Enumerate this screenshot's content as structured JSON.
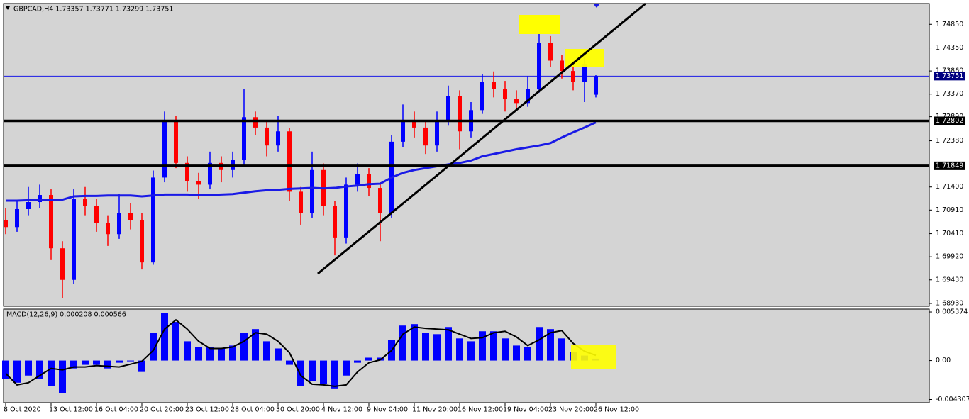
{
  "chart_data": [
    {
      "type": "candlestick",
      "title": "GBPCAD,H4  1.73357 1.73771 1.73299 1.73751",
      "categories": [
        "8 Oct 2020",
        null,
        null,
        null,
        "13 Oct 12:00",
        null,
        null,
        null,
        "16 Oct 04:00",
        null,
        null,
        null,
        "20 Oct 20:00",
        null,
        null,
        null,
        "23 Oct 12:00",
        null,
        null,
        null,
        "28 Oct 04:00",
        null,
        null,
        null,
        "30 Oct 20:00",
        null,
        null,
        null,
        "4 Nov 12:00",
        null,
        null,
        null,
        "9 Nov 04:00",
        null,
        null,
        null,
        "11 Nov 20:00",
        null,
        null,
        null,
        "16 Nov 12:00",
        null,
        null,
        null,
        "19 Nov 04:00",
        null,
        null,
        null,
        "23 Nov 20:00",
        null,
        null,
        null,
        "26 Nov 12:00"
      ],
      "open": [
        1.707,
        1.7055,
        1.7093,
        1.7108,
        1.7123,
        1.701,
        1.6943,
        1.7115,
        1.71,
        1.7063,
        1.704,
        1.7085,
        1.707,
        1.698,
        1.716,
        1.7281,
        1.7191,
        1.7153,
        1.7145,
        1.7191,
        1.7176,
        1.7198,
        1.7288,
        1.7266,
        1.7228,
        1.7258,
        1.713,
        1.7085,
        1.7176,
        1.71,
        1.7033,
        1.7145,
        1.7168,
        1.7138,
        1.7085,
        1.7236,
        1.7281,
        1.7266,
        1.7228,
        1.7281,
        1.7333,
        1.7258,
        1.7303,
        1.7363,
        1.7348,
        1.7326,
        1.7318,
        1.7348,
        1.7446,
        1.7408,
        1.7386,
        1.7363,
        1.73357
      ],
      "high": [
        1.7095,
        1.711,
        1.714,
        1.7145,
        1.7135,
        1.7025,
        1.7135,
        1.714,
        1.7115,
        1.708,
        1.7125,
        1.7105,
        1.7085,
        1.7175,
        1.73,
        1.729,
        1.7205,
        1.717,
        1.7215,
        1.7205,
        1.7215,
        1.7348,
        1.73,
        1.728,
        1.729,
        1.7265,
        1.714,
        1.7215,
        1.719,
        1.711,
        1.716,
        1.719,
        1.718,
        1.715,
        1.725,
        1.7315,
        1.73,
        1.728,
        1.73,
        1.7355,
        1.7345,
        1.732,
        1.738,
        1.7385,
        1.7365,
        1.7345,
        1.7375,
        1.7491,
        1.746,
        1.742,
        1.74,
        1.7415,
        1.73771
      ],
      "low": [
        1.704,
        1.7045,
        1.708,
        1.7095,
        1.6985,
        1.6905,
        1.6935,
        1.708,
        1.7045,
        1.7015,
        1.703,
        1.705,
        1.6965,
        1.6975,
        1.715,
        1.718,
        1.713,
        1.7115,
        1.7135,
        1.715,
        1.716,
        1.7185,
        1.725,
        1.7205,
        1.7215,
        1.711,
        1.706,
        1.7075,
        1.708,
        1.6995,
        1.702,
        1.713,
        1.712,
        1.7025,
        1.7075,
        1.7225,
        1.7245,
        1.721,
        1.7215,
        1.727,
        1.722,
        1.7245,
        1.7295,
        1.733,
        1.73,
        1.7305,
        1.731,
        1.734,
        1.7395,
        1.737,
        1.7345,
        1.732,
        1.73299
      ],
      "close": [
        1.7055,
        1.7093,
        1.7108,
        1.7123,
        1.701,
        1.6943,
        1.7115,
        1.71,
        1.7063,
        1.704,
        1.7085,
        1.707,
        1.698,
        1.716,
        1.7281,
        1.7191,
        1.7153,
        1.7145,
        1.7191,
        1.7176,
        1.7198,
        1.7288,
        1.7266,
        1.7228,
        1.7258,
        1.713,
        1.7085,
        1.7176,
        1.71,
        1.7033,
        1.7145,
        1.7168,
        1.7138,
        1.7085,
        1.7236,
        1.7281,
        1.7266,
        1.7228,
        1.7281,
        1.7333,
        1.7258,
        1.7303,
        1.7363,
        1.7348,
        1.7326,
        1.7318,
        1.7348,
        1.7446,
        1.7408,
        1.7386,
        1.7363,
        1.7401,
        1.73751
      ],
      "ma": [
        1.7111,
        1.7111,
        1.7112,
        1.7112,
        1.7113,
        1.7113,
        1.712,
        1.7121,
        1.7121,
        1.7122,
        1.7122,
        1.7122,
        1.712,
        1.7122,
        1.7124,
        1.7124,
        1.7124,
        1.7123,
        1.7123,
        1.7124,
        1.7125,
        1.7128,
        1.7131,
        1.7133,
        1.7134,
        1.7136,
        1.7137,
        1.7138,
        1.7137,
        1.7138,
        1.7141,
        1.7143,
        1.7146,
        1.7147,
        1.716,
        1.717,
        1.7176,
        1.718,
        1.7184,
        1.7188,
        1.7191,
        1.7196,
        1.7205,
        1.721,
        1.7215,
        1.722,
        1.7224,
        1.7228,
        1.7233,
        1.7245,
        1.7256,
        1.7266,
        1.7277
      ],
      "up_color": "#0000ff",
      "down_color": "#ff0000",
      "ma_color": "#1a1ae6",
      "levels": [
        1.72802,
        1.71849
      ],
      "bid_line": 1.73751,
      "ylim": [
        1.6887,
        1.7529
      ],
      "yticks": [
        {
          "value": 1.7485,
          "label": "1.74850"
        },
        {
          "value": 1.7435,
          "label": "1.74350"
        },
        {
          "value": 1.7386,
          "label": "1.73860"
        },
        {
          "value": 1.7337,
          "label": "1.73370"
        },
        {
          "value": 1.7289,
          "label": "1.72890"
        },
        {
          "value": 1.7238,
          "label": "1.72380"
        },
        {
          "value": 1.714,
          "label": "1.71400"
        },
        {
          "value": 1.7091,
          "label": "1.70910"
        },
        {
          "value": 1.7041,
          "label": "1.70410"
        },
        {
          "value": 1.6992,
          "label": "1.69920"
        },
        {
          "value": 1.6943,
          "label": "1.69430"
        },
        {
          "value": 1.6893,
          "label": "1.68930"
        }
      ]
    },
    {
      "type": "macd",
      "title": "MACD(12,26,9) 0.000208 0.000566",
      "histogram": [
        -0.00205,
        -0.00245,
        -0.00166,
        -0.00205,
        -0.00285,
        -0.00364,
        -0.00087,
        -0.00047,
        -0.00047,
        -0.00087,
        -0.00024,
        -8e-05,
        -0.00126,
        0.00308,
        0.00522,
        0.00427,
        0.00213,
        0.0015,
        0.0015,
        0.00134,
        0.00166,
        0.00308,
        0.00348,
        0.00213,
        0.00134,
        -0.00047,
        -0.00285,
        -0.00229,
        -0.00261,
        -0.00308,
        -0.00166,
        -0.00024,
        0.00032,
        0.00032,
        0.00229,
        0.00387,
        0.00403,
        0.00308,
        0.00292,
        0.00371,
        0.00245,
        0.00213,
        0.00324,
        0.00324,
        0.00245,
        0.00166,
        0.0015,
        0.00371,
        0.00348,
        0.00245,
        0.00095,
        0.00055,
        0.000208
      ],
      "signal": [
        -0.00142,
        -0.00269,
        -0.00245,
        -0.00166,
        -0.00087,
        -0.00103,
        -0.00071,
        -0.00071,
        -0.00055,
        -0.00063,
        -0.00071,
        -0.0004,
        -8e-05,
        0.00111,
        0.00348,
        0.0045,
        0.00348,
        0.00213,
        0.00134,
        0.00134,
        0.0015,
        0.00213,
        0.00308,
        0.00292,
        0.00213,
        0.00087,
        -0.00166,
        -0.00261,
        -0.00269,
        -0.00285,
        -0.00269,
        -0.00126,
        -0.00024,
        8e-05,
        0.00111,
        0.00292,
        0.00371,
        0.00356,
        0.00348,
        0.0034,
        0.00292,
        0.00245,
        0.00253,
        0.00308,
        0.00324,
        0.00261,
        0.00166,
        0.00229,
        0.00308,
        0.00332,
        0.0019,
        0.00103,
        0.000566
      ],
      "histogram_color": "#0000ff",
      "signal_color": "#000000",
      "ylim": [
        -0.00466,
        0.00569
      ],
      "yticks": [
        0.005374,
        {
          "value": 0,
          "label": "0.00"
        },
        -0.004307
      ]
    }
  ]
}
